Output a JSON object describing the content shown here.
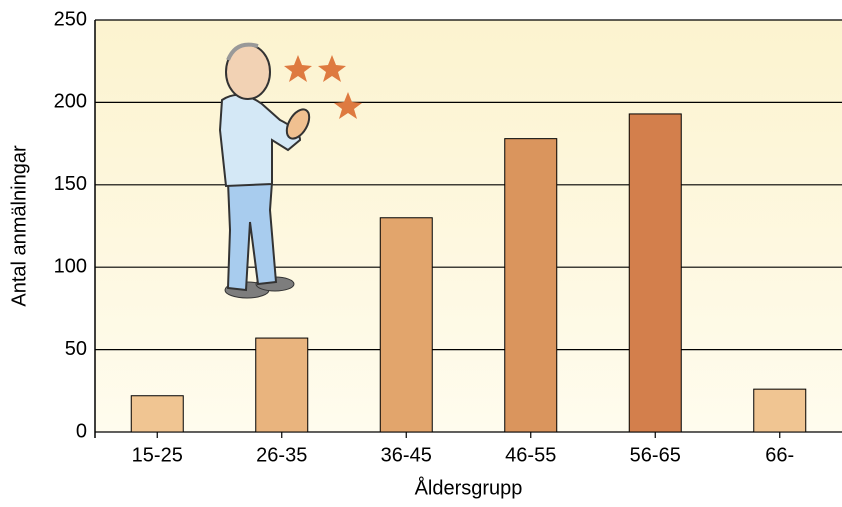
{
  "chart_data": {
    "type": "bar",
    "x_label": "Åldersgrupp",
    "y_label": "Antal anmälningar",
    "categories": [
      "15-25",
      "26-35",
      "36-45",
      "46-55",
      "56-65",
      "66-"
    ],
    "values": [
      22,
      57,
      130,
      178,
      193,
      26
    ],
    "colors": [
      "#f0c592",
      "#e9b47e",
      "#e2a56c",
      "#da955d",
      "#d37f4c",
      "#f0c592"
    ],
    "ylim": [
      0,
      250
    ],
    "yticks": [
      0,
      50,
      100,
      150,
      200,
      250
    ],
    "grid": true
  }
}
